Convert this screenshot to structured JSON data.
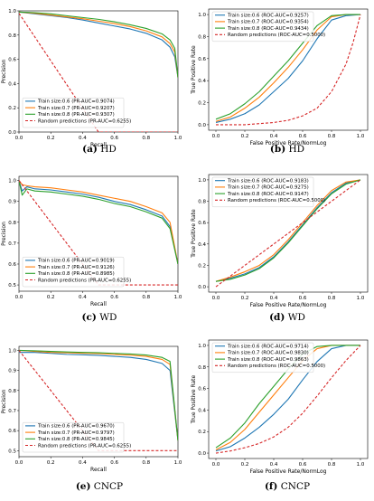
{
  "colors": {
    "s06": "#1f77b4",
    "s07": "#ff7f0e",
    "s08": "#2ca02c",
    "random": "#d62728"
  },
  "chart_data": [
    {
      "id": "a",
      "type": "line",
      "caption_letter": "(a)",
      "caption_text": "HD",
      "xlabel": "Recall",
      "ylabel": "Precision",
      "xlim": [
        0,
        1
      ],
      "ylim": [
        0.0,
        1.0
      ],
      "xticks": [
        "0.0",
        "0.2",
        "0.4",
        "0.6",
        "0.8",
        "1.0"
      ],
      "yticks": [
        "0.0",
        "0.2",
        "0.4",
        "0.6",
        "0.8",
        "1.0"
      ],
      "legend_position": "lower-left",
      "series": [
        {
          "name": "Train size:0.6 (PR-AUC=0.9074)",
          "color_key": "s06",
          "dash": false,
          "x": [
            0,
            0.1,
            0.2,
            0.3,
            0.4,
            0.5,
            0.6,
            0.7,
            0.8,
            0.9,
            0.95,
            0.98,
            1.0
          ],
          "y": [
            0.99,
            0.975,
            0.96,
            0.945,
            0.925,
            0.9,
            0.875,
            0.85,
            0.815,
            0.76,
            0.7,
            0.62,
            0.45
          ]
        },
        {
          "name": "Train size:0.7 (PR-AUC=0.9207)",
          "color_key": "s07",
          "dash": false,
          "x": [
            0,
            0.1,
            0.2,
            0.3,
            0.4,
            0.5,
            0.6,
            0.7,
            0.8,
            0.9,
            0.95,
            0.98,
            1.0
          ],
          "y": [
            0.99,
            0.98,
            0.965,
            0.95,
            0.935,
            0.915,
            0.895,
            0.87,
            0.835,
            0.785,
            0.73,
            0.66,
            0.45
          ]
        },
        {
          "name": "Train size:0.8 (PR-AUC=0.9307)",
          "color_key": "s08",
          "dash": false,
          "x": [
            0,
            0.1,
            0.2,
            0.3,
            0.4,
            0.5,
            0.6,
            0.7,
            0.8,
            0.9,
            0.95,
            0.98,
            1.0
          ],
          "y": [
            0.99,
            0.985,
            0.975,
            0.96,
            0.945,
            0.93,
            0.91,
            0.885,
            0.855,
            0.81,
            0.76,
            0.69,
            0.45
          ]
        },
        {
          "name": "Random predictions (PR-AUC=0.6255)",
          "color_key": "random",
          "dash": true,
          "x": [
            0,
            0.5,
            1.0
          ],
          "y": [
            0.98,
            0.0,
            0.0
          ]
        }
      ]
    },
    {
      "id": "b",
      "type": "line",
      "caption_letter": "(b)",
      "caption_text": "HD",
      "xlabel": "False Positive Rate/NormLog",
      "ylabel": "True Positive Rate",
      "xlim": [
        -0.05,
        1.05
      ],
      "ylim": [
        -0.05,
        1.05
      ],
      "xticks": [
        "0.0",
        "0.2",
        "0.4",
        "0.6",
        "0.8",
        "1.0"
      ],
      "yticks": [
        "0.0",
        "0.2",
        "0.4",
        "0.6",
        "0.8",
        "1.0"
      ],
      "legend_position": "upper-left",
      "series": [
        {
          "name": "Train size:0.6 (ROC-AUC=0.9257)",
          "color_key": "s06",
          "dash": false,
          "x": [
            0,
            0.1,
            0.2,
            0.3,
            0.4,
            0.5,
            0.6,
            0.7,
            0.8,
            0.9,
            1.0
          ],
          "y": [
            0.02,
            0.05,
            0.1,
            0.18,
            0.3,
            0.42,
            0.58,
            0.78,
            0.95,
            0.99,
            1.0
          ]
        },
        {
          "name": "Train size:0.7 (ROC-AUC=0.9354)",
          "color_key": "s07",
          "dash": false,
          "x": [
            0,
            0.1,
            0.2,
            0.3,
            0.4,
            0.5,
            0.6,
            0.7,
            0.8,
            0.9,
            1.0
          ],
          "y": [
            0.03,
            0.07,
            0.15,
            0.25,
            0.38,
            0.52,
            0.68,
            0.86,
            0.98,
            1.0,
            1.0
          ]
        },
        {
          "name": "Train size:0.8 (ROC-AUC=0.9434)",
          "color_key": "s08",
          "dash": false,
          "x": [
            0,
            0.1,
            0.2,
            0.3,
            0.4,
            0.5,
            0.6,
            0.7,
            0.8,
            0.9,
            1.0
          ],
          "y": [
            0.05,
            0.1,
            0.19,
            0.3,
            0.44,
            0.58,
            0.74,
            0.9,
            0.99,
            1.0,
            1.0
          ]
        },
        {
          "name": "Random predictions (ROC-AUC=0.5000)",
          "color_key": "random",
          "dash": true,
          "x": [
            0,
            0.1,
            0.2,
            0.3,
            0.4,
            0.5,
            0.6,
            0.7,
            0.8,
            0.9,
            0.95,
            1.0
          ],
          "y": [
            0,
            0.0,
            0.0,
            0.01,
            0.02,
            0.04,
            0.08,
            0.15,
            0.3,
            0.55,
            0.75,
            1.0
          ]
        }
      ]
    },
    {
      "id": "c",
      "type": "line",
      "caption_letter": "(c)",
      "caption_text": "WD",
      "xlabel": "Recall",
      "ylabel": "Precision",
      "xlim": [
        0,
        1
      ],
      "ylim": [
        0.47,
        1.02
      ],
      "xticks": [
        "0.0",
        "0.2",
        "0.4",
        "0.6",
        "0.8",
        "1.0"
      ],
      "yticks": [
        "0.5",
        "0.6",
        "0.7",
        "0.8",
        "0.9",
        "1.0"
      ],
      "legend_position": "lower-left",
      "series": [
        {
          "name": "Train size:0.6 (PR-AUC=0.9019)",
          "color_key": "s06",
          "dash": false,
          "x": [
            0,
            0.02,
            0.05,
            0.1,
            0.2,
            0.3,
            0.4,
            0.5,
            0.6,
            0.7,
            0.8,
            0.9,
            0.95,
            1.0
          ],
          "y": [
            1.0,
            0.95,
            0.97,
            0.96,
            0.955,
            0.945,
            0.935,
            0.92,
            0.9,
            0.885,
            0.86,
            0.83,
            0.78,
            0.6
          ]
        },
        {
          "name": "Train size:0.7 (PR-AUC=0.9126)",
          "color_key": "s07",
          "dash": false,
          "x": [
            0,
            0.02,
            0.05,
            0.1,
            0.2,
            0.3,
            0.4,
            0.5,
            0.6,
            0.7,
            0.8,
            0.9,
            0.95,
            1.0
          ],
          "y": [
            1.0,
            0.98,
            0.975,
            0.97,
            0.965,
            0.955,
            0.945,
            0.93,
            0.915,
            0.9,
            0.875,
            0.845,
            0.8,
            0.6
          ]
        },
        {
          "name": "Train size:0.8 (PR-AUC=0.8985)",
          "color_key": "s08",
          "dash": false,
          "x": [
            0,
            0.02,
            0.05,
            0.1,
            0.2,
            0.3,
            0.4,
            0.5,
            0.6,
            0.7,
            0.8,
            0.9,
            0.95,
            1.0
          ],
          "y": [
            1.0,
            0.93,
            0.96,
            0.95,
            0.945,
            0.935,
            0.925,
            0.91,
            0.89,
            0.875,
            0.85,
            0.82,
            0.77,
            0.6
          ]
        },
        {
          "name": "Random predictions (PR-AUC=0.6255)",
          "color_key": "random",
          "dash": true,
          "x": [
            0,
            0.5,
            1.0
          ],
          "y": [
            1.0,
            0.5,
            0.5
          ]
        }
      ]
    },
    {
      "id": "d",
      "type": "line",
      "caption_letter": "(d)",
      "caption_text": "WD",
      "xlabel": "False Positive Rate/NormLog",
      "ylabel": "True Positive Rate",
      "xlim": [
        -0.05,
        1.05
      ],
      "ylim": [
        -0.05,
        1.05
      ],
      "xticks": [
        "0.0",
        "0.2",
        "0.4",
        "0.6",
        "0.8",
        "1.0"
      ],
      "yticks": [
        "0.0",
        "0.2",
        "0.4",
        "0.6",
        "0.8",
        "1.0"
      ],
      "legend_position": "upper-left",
      "series": [
        {
          "name": "Train size:0.6 (ROC-AUC=0.9183)",
          "color_key": "s06",
          "dash": false,
          "x": [
            0,
            0.1,
            0.2,
            0.3,
            0.4,
            0.5,
            0.6,
            0.7,
            0.8,
            0.9,
            1.0
          ],
          "y": [
            0.05,
            0.08,
            0.12,
            0.18,
            0.28,
            0.42,
            0.58,
            0.74,
            0.88,
            0.97,
            1.0
          ]
        },
        {
          "name": "Train size:0.7 (ROC-AUC=0.9275)",
          "color_key": "s07",
          "dash": false,
          "x": [
            0,
            0.1,
            0.2,
            0.3,
            0.4,
            0.5,
            0.6,
            0.7,
            0.8,
            0.9,
            1.0
          ],
          "y": [
            0.05,
            0.09,
            0.14,
            0.2,
            0.3,
            0.44,
            0.6,
            0.76,
            0.9,
            0.98,
            1.0
          ]
        },
        {
          "name": "Train size:0.8 (ROC-AUC=0.9147)",
          "color_key": "s08",
          "dash": false,
          "x": [
            0,
            0.1,
            0.2,
            0.3,
            0.4,
            0.5,
            0.6,
            0.7,
            0.8,
            0.9,
            1.0
          ],
          "y": [
            0.05,
            0.07,
            0.11,
            0.17,
            0.27,
            0.41,
            0.57,
            0.73,
            0.87,
            0.96,
            1.0
          ]
        },
        {
          "name": "Random predictions (ROC-AUC=0.5000)",
          "color_key": "random",
          "dash": true,
          "x": [
            0,
            0.1,
            0.2,
            0.3,
            0.4,
            0.5,
            0.6,
            0.7,
            0.8,
            0.9,
            1.0
          ],
          "y": [
            0,
            0.1,
            0.2,
            0.3,
            0.4,
            0.5,
            0.6,
            0.7,
            0.8,
            0.9,
            1.0
          ]
        }
      ]
    },
    {
      "id": "e",
      "type": "line",
      "caption_letter": "(e)",
      "caption_text": "CNCP",
      "xlabel": "Recall",
      "ylabel": "Precision",
      "xlim": [
        0,
        1
      ],
      "ylim": [
        0.47,
        1.02
      ],
      "xticks": [
        "0.0",
        "0.2",
        "0.4",
        "0.6",
        "0.8",
        "1.0"
      ],
      "yticks": [
        "0.5",
        "0.6",
        "0.7",
        "0.8",
        "0.9",
        "1.0"
      ],
      "legend_position": "lower-left",
      "series": [
        {
          "name": "Train size:0.6 (PR-AUC=0.9670)",
          "color_key": "s06",
          "dash": false,
          "x": [
            0,
            0.1,
            0.2,
            0.3,
            0.4,
            0.5,
            0.6,
            0.7,
            0.8,
            0.9,
            0.95,
            1.0
          ],
          "y": [
            0.99,
            0.99,
            0.985,
            0.98,
            0.978,
            0.975,
            0.97,
            0.965,
            0.955,
            0.935,
            0.9,
            0.55
          ]
        },
        {
          "name": "Train size:0.7 (PR-AUC=0.9797)",
          "color_key": "s07",
          "dash": false,
          "x": [
            0,
            0.1,
            0.2,
            0.3,
            0.4,
            0.5,
            0.6,
            0.7,
            0.8,
            0.9,
            0.95,
            1.0
          ],
          "y": [
            1.0,
            0.995,
            0.99,
            0.988,
            0.986,
            0.984,
            0.98,
            0.976,
            0.97,
            0.955,
            0.93,
            0.55
          ]
        },
        {
          "name": "Train size:0.8 (PR-AUC=0.9845)",
          "color_key": "s08",
          "dash": false,
          "x": [
            0,
            0.1,
            0.2,
            0.3,
            0.4,
            0.5,
            0.6,
            0.7,
            0.8,
            0.9,
            0.95,
            1.0
          ],
          "y": [
            1.0,
            0.998,
            0.995,
            0.992,
            0.99,
            0.988,
            0.985,
            0.982,
            0.977,
            0.965,
            0.945,
            0.55
          ]
        },
        {
          "name": "Random predictions (PR-AUC=0.6255)",
          "color_key": "random",
          "dash": true,
          "x": [
            0,
            0.5,
            1.0
          ],
          "y": [
            1.0,
            0.5,
            0.5
          ]
        }
      ]
    },
    {
      "id": "f",
      "type": "line",
      "caption_letter": "(f)",
      "caption_text": "CNCP",
      "xlabel": "False Positive Rate/NormLog",
      "ylabel": "True Positive Rate",
      "xlim": [
        -0.05,
        1.05
      ],
      "ylim": [
        -0.05,
        1.05
      ],
      "xticks": [
        "0.0",
        "0.2",
        "0.4",
        "0.6",
        "0.8",
        "1.0"
      ],
      "yticks": [
        "0.0",
        "0.2",
        "0.4",
        "0.6",
        "0.8",
        "1.0"
      ],
      "legend_position": "upper-left",
      "series": [
        {
          "name": "Train size:0.6 (ROC-AUC=0.9714)",
          "color_key": "s06",
          "dash": false,
          "x": [
            0,
            0.1,
            0.2,
            0.3,
            0.4,
            0.5,
            0.6,
            0.7,
            0.8,
            0.9,
            1.0
          ],
          "y": [
            0.02,
            0.06,
            0.14,
            0.24,
            0.36,
            0.5,
            0.68,
            0.85,
            0.97,
            1.0,
            1.0
          ]
        },
        {
          "name": "Train size:0.7 (ROC-AUC=0.9830)",
          "color_key": "s07",
          "dash": false,
          "x": [
            0,
            0.1,
            0.2,
            0.3,
            0.4,
            0.5,
            0.6,
            0.7,
            0.8,
            0.9,
            1.0
          ],
          "y": [
            0.03,
            0.1,
            0.22,
            0.38,
            0.54,
            0.7,
            0.86,
            0.97,
            1.0,
            1.0,
            1.0
          ]
        },
        {
          "name": "Train size:0.8 (ROC-AUC=0.9863)",
          "color_key": "s08",
          "dash": false,
          "x": [
            0,
            0.1,
            0.2,
            0.3,
            0.4,
            0.5,
            0.6,
            0.7,
            0.8,
            0.9,
            1.0
          ],
          "y": [
            0.05,
            0.14,
            0.28,
            0.46,
            0.62,
            0.78,
            0.92,
            0.99,
            1.0,
            1.0,
            1.0
          ]
        },
        {
          "name": "Random predictions (ROC-AUC=0.5000)",
          "color_key": "random",
          "dash": true,
          "x": [
            0,
            0.1,
            0.2,
            0.3,
            0.4,
            0.5,
            0.6,
            0.7,
            0.8,
            0.9,
            1.0
          ],
          "y": [
            0,
            0.02,
            0.05,
            0.09,
            0.15,
            0.24,
            0.37,
            0.53,
            0.7,
            0.86,
            1.0
          ]
        }
      ]
    }
  ]
}
